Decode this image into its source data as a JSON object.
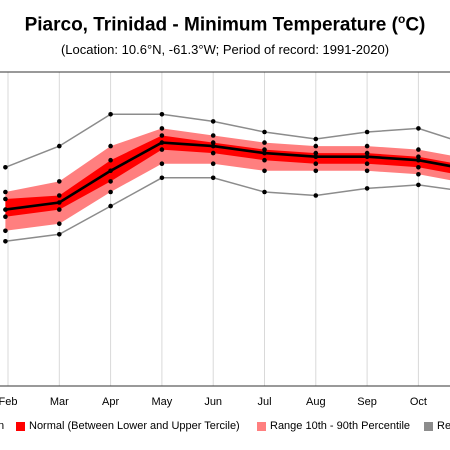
{
  "header": {
    "title": "Piarco, Trinidad - Minimum Temperature (",
    "title_sup": "o",
    "title_end": "C)",
    "subtitle": "(Location: 10.6°N, -61.3°W; Period of record: 1991-2020)"
  },
  "legend": {
    "items": [
      {
        "label": "n",
        "color": "#000000"
      },
      {
        "label": "Normal (Between Lower and Upper Tercile)",
        "color": "#ff0000"
      },
      {
        "label": "Range 10th - 90th Percentile",
        "color": "#ff7f7f"
      },
      {
        "label": "Re",
        "color": "#8c8c8c"
      }
    ]
  },
  "chart_data": {
    "type": "line",
    "categories": [
      "Feb",
      "Mar",
      "Apr",
      "May",
      "Jun",
      "Jul",
      "Aug",
      "Sep",
      "Oct"
    ],
    "x_visible_from": 0.0,
    "x_visible_to": 9.55,
    "ylim": [
      15.8,
      24.7
    ],
    "colors": {
      "mean": "#000000",
      "normal": "#ff0000",
      "range": "#ff7f7f",
      "record": "#8c8c8c",
      "grid": "#d9d9d9"
    },
    "series": [
      {
        "name": "record_high",
        "points": [
          [
            -0.05,
            22.0
          ],
          [
            1,
            22.6
          ],
          [
            2,
            23.5
          ],
          [
            3,
            23.5
          ],
          [
            4,
            23.3
          ],
          [
            5,
            23.0
          ],
          [
            6,
            22.8
          ],
          [
            7,
            23.0
          ],
          [
            8,
            23.1
          ],
          [
            9.5,
            22.4
          ]
        ]
      },
      {
        "name": "p90",
        "points": [
          [
            -0.05,
            21.3
          ],
          [
            1,
            21.6
          ],
          [
            2,
            22.6
          ],
          [
            3,
            23.1
          ],
          [
            4,
            22.9
          ],
          [
            5,
            22.7
          ],
          [
            6,
            22.6
          ],
          [
            7,
            22.6
          ],
          [
            8,
            22.5
          ],
          [
            9.5,
            22.1
          ]
        ]
      },
      {
        "name": "upper_tercile",
        "points": [
          [
            -0.05,
            21.1
          ],
          [
            1,
            21.2
          ],
          [
            2,
            22.2
          ],
          [
            3,
            22.9
          ],
          [
            4,
            22.7
          ],
          [
            5,
            22.5
          ],
          [
            6,
            22.4
          ],
          [
            7,
            22.4
          ],
          [
            8,
            22.3
          ],
          [
            9.5,
            21.9
          ]
        ]
      },
      {
        "name": "mean",
        "points": [
          [
            -0.05,
            20.8
          ],
          [
            1,
            21.0
          ],
          [
            2,
            21.9
          ],
          [
            3,
            22.7
          ],
          [
            4,
            22.6
          ],
          [
            5,
            22.4
          ],
          [
            6,
            22.3
          ],
          [
            7,
            22.3
          ],
          [
            8,
            22.2
          ],
          [
            9.5,
            21.8
          ]
        ]
      },
      {
        "name": "lower_tercile",
        "points": [
          [
            -0.05,
            20.6
          ],
          [
            1,
            20.8
          ],
          [
            2,
            21.6
          ],
          [
            3,
            22.5
          ],
          [
            4,
            22.4
          ],
          [
            5,
            22.2
          ],
          [
            6,
            22.1
          ],
          [
            7,
            22.1
          ],
          [
            8,
            22.0
          ],
          [
            9.5,
            21.6
          ]
        ]
      },
      {
        "name": "p10",
        "points": [
          [
            -0.05,
            20.2
          ],
          [
            1,
            20.4
          ],
          [
            2,
            21.3
          ],
          [
            3,
            22.1
          ],
          [
            4,
            22.1
          ],
          [
            5,
            21.9
          ],
          [
            6,
            21.9
          ],
          [
            7,
            21.9
          ],
          [
            8,
            21.8
          ],
          [
            9.5,
            21.4
          ]
        ]
      },
      {
        "name": "record_low",
        "points": [
          [
            -0.05,
            19.9
          ],
          [
            1,
            20.1
          ],
          [
            2,
            20.9
          ],
          [
            3,
            21.7
          ],
          [
            4,
            21.7
          ],
          [
            5,
            21.3
          ],
          [
            6,
            21.2
          ],
          [
            7,
            21.4
          ],
          [
            8,
            21.5
          ],
          [
            9.5,
            21.2
          ]
        ]
      }
    ]
  }
}
